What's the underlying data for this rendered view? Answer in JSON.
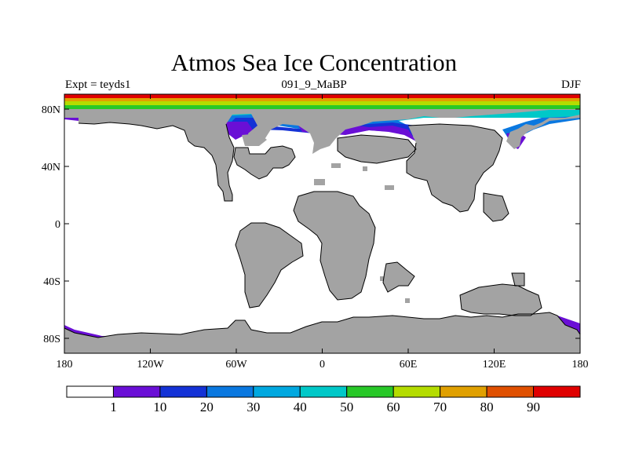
{
  "title": "Atmos Sea Ice Concentration",
  "left_string": "Expt = teyds1",
  "center_string": "091_9_MaBP",
  "right_string": "DJF",
  "x_ticks": [
    "180",
    "120W",
    "60W",
    "0",
    "60E",
    "120E",
    "180"
  ],
  "y_ticks": [
    "80N",
    "40N",
    "0",
    "40S",
    "80S"
  ],
  "colorbar": {
    "labels": [
      "1",
      "10",
      "20",
      "30",
      "40",
      "50",
      "60",
      "70",
      "80",
      "90"
    ],
    "colors": [
      "#ffffff",
      "#6a0fd6",
      "#1432d6",
      "#0a78e0",
      "#00a8e0",
      "#00c8c8",
      "#28c828",
      "#b4dc00",
      "#e0a000",
      "#e05000",
      "#e00000"
    ]
  },
  "colors": {
    "land": "#a3a3a3",
    "ocean": "#ffffff"
  }
}
